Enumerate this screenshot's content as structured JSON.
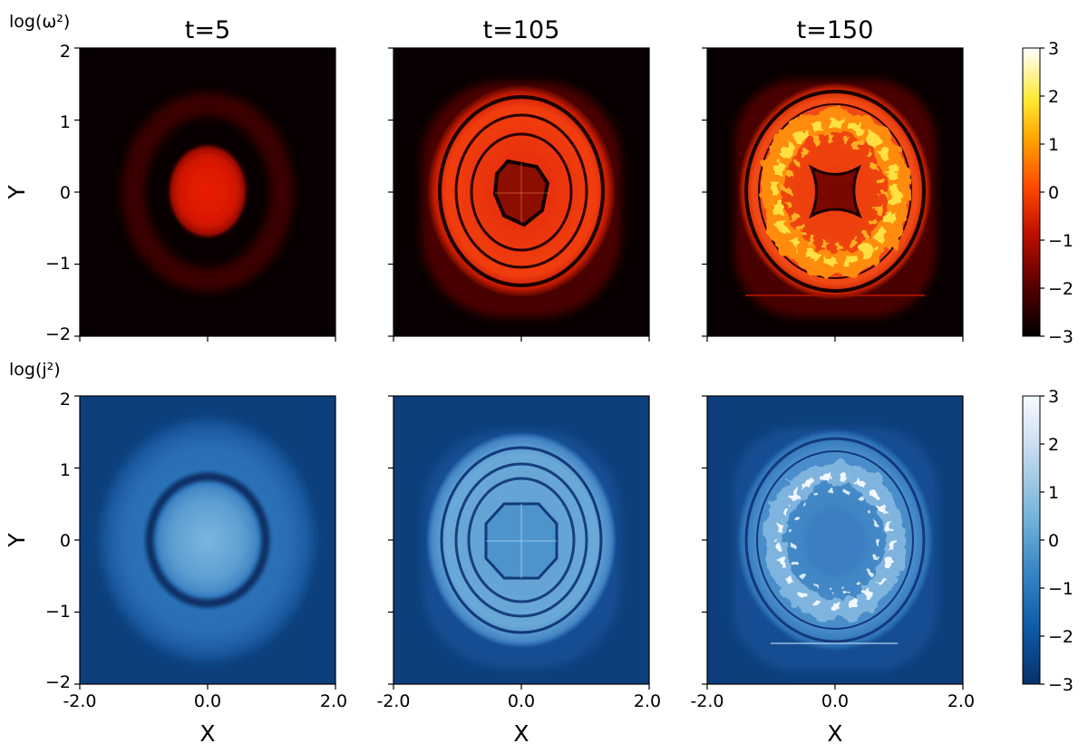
{
  "chart_data": {
    "type": "heatmap",
    "columns": [
      "t=5",
      "t=105",
      "t=150"
    ],
    "rows": [
      {
        "label": "log(ω²)",
        "quantity": "omega2",
        "colormap": "hot",
        "colorbar": {
          "range": [
            -3,
            3
          ],
          "ticks": [
            "3",
            "2",
            "1",
            "0",
            "−1",
            "−2",
            "−3"
          ]
        },
        "panels": [
          {
            "time": 5,
            "structure": "central blob with faint outer ring",
            "core_level": -1.0,
            "ring_level": -2.3,
            "background_level": -3.0
          },
          {
            "time": 105,
            "structure": "concentric rings with dark contour lines, hollow core",
            "ring_level": -0.9,
            "core_level": -1.6,
            "background_level": -3.0
          },
          {
            "time": 150,
            "structure": "turbulent filaments in annulus, star-shaped dark core",
            "ring_level": -0.9,
            "filament_peak_level": 2.0,
            "background_level": -3.0
          }
        ]
      },
      {
        "label": "log(j²)",
        "quantity": "j2",
        "colormap": "Blues_r",
        "colorbar": {
          "range": [
            -3,
            3
          ],
          "ticks": [
            "3",
            "2",
            "1",
            "0",
            "−1",
            "−2",
            "−3"
          ]
        },
        "panels": [
          {
            "time": 5,
            "structure": "bright core, dark ring, broad halo",
            "core_level": -0.4,
            "ring_level": -2.4,
            "background_level": -2.9
          },
          {
            "time": 105,
            "structure": "concentric rings with dark contour lines",
            "ring_level": -0.7,
            "background_level": -2.8
          },
          {
            "time": 150,
            "structure": "turbulent filaments in annulus, bright white streaks",
            "ring_level": -1.0,
            "filament_peak_level": 2.5,
            "background_level": -2.8
          }
        ]
      }
    ],
    "x_axis": {
      "label": "X",
      "range": [
        -2,
        2
      ],
      "ticks": [
        "-2.0",
        "0.0",
        "2.0"
      ]
    },
    "y_axis": {
      "label": "Y",
      "range": [
        -2,
        2
      ],
      "ticks": [
        "2",
        "1",
        "0",
        "−1",
        "−2"
      ]
    }
  }
}
